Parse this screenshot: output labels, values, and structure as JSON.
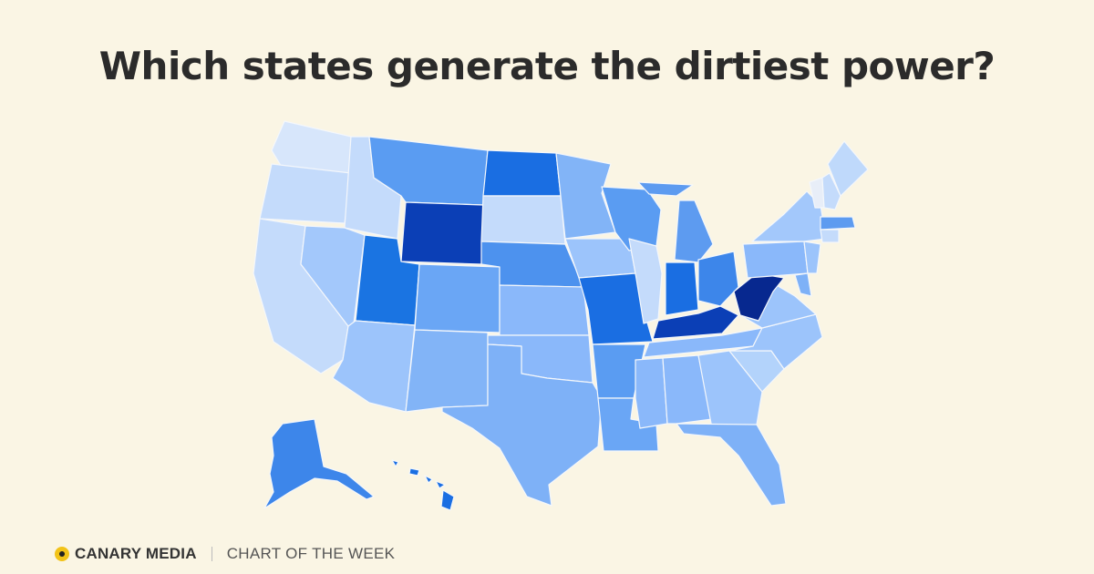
{
  "title": "Which states generate the dirtiest power?",
  "footer": {
    "brand": "CANARY MEDIA",
    "section": "CHART OF THE WEEK"
  }
}
